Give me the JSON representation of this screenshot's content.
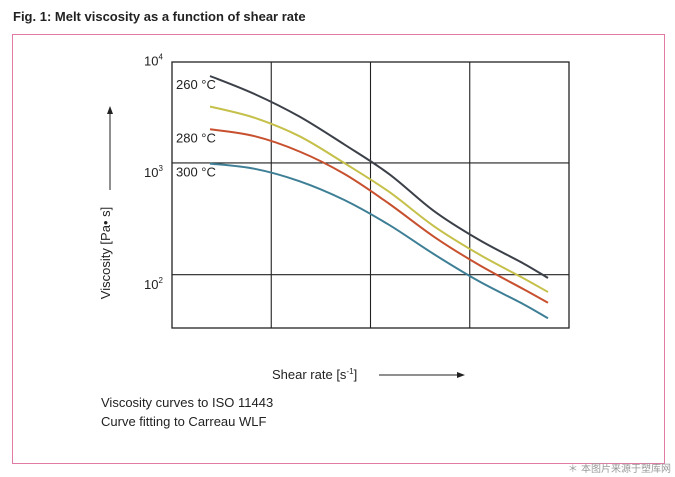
{
  "figure": {
    "title": "Fig. 1: Melt viscosity as a function of shear rate",
    "caption_line1": "Viscosity curves to ISO 11443",
    "caption_line2": "Curve fitting to Carreau WLF",
    "credit": "＊ 本图片来源于塑库网",
    "frame_color": "#e17aa4"
  },
  "chart_data": {
    "type": "line",
    "title": "Fig. 1: Melt viscosity as a function of shear rate",
    "xlabel": "Shear rate [s-1]",
    "ylabel": "Viscosity [Pa• s]",
    "y_scale": "log",
    "x_ticks_labeled": false,
    "y_ticks": [
      {
        "base": "10",
        "exp": "4",
        "value": 10000
      },
      {
        "base": "10",
        "exp": "3",
        "value": 1000
      },
      {
        "base": "10",
        "exp": "2",
        "value": 100
      }
    ],
    "grid": true,
    "series": [
      {
        "name": "260 °C",
        "color": "#3c4149",
        "points": [
          [
            0,
            9000
          ],
          [
            0.5,
            6200
          ],
          [
            1.0,
            3900
          ],
          [
            1.5,
            2200
          ],
          [
            2.0,
            1200
          ],
          [
            2.5,
            560
          ],
          [
            3.0,
            310
          ],
          [
            3.5,
            190
          ],
          [
            3.78,
            140
          ]
        ]
      },
      {
        "name": "",
        "color": "#c5c04a",
        "points": [
          [
            0,
            4800
          ],
          [
            0.5,
            3800
          ],
          [
            1.0,
            2600
          ],
          [
            1.5,
            1500
          ],
          [
            2.0,
            830
          ],
          [
            2.5,
            410
          ],
          [
            3.0,
            230
          ],
          [
            3.5,
            140
          ],
          [
            3.78,
            105
          ]
        ]
      },
      {
        "name": "280 °C",
        "color": "#c7502f",
        "points": [
          [
            0,
            3000
          ],
          [
            0.5,
            2600
          ],
          [
            1.0,
            1900
          ],
          [
            1.5,
            1200
          ],
          [
            2.0,
            650
          ],
          [
            2.5,
            330
          ],
          [
            3.0,
            185
          ],
          [
            3.5,
            112
          ],
          [
            3.78,
            84
          ]
        ]
      },
      {
        "name": "300 °C",
        "color": "#3e7f96",
        "points": [
          [
            0,
            1480
          ],
          [
            0.5,
            1330
          ],
          [
            1.0,
            1030
          ],
          [
            1.5,
            700
          ],
          [
            2.0,
            420
          ],
          [
            2.5,
            230
          ],
          [
            3.0,
            132
          ],
          [
            3.5,
            82
          ],
          [
            3.78,
            61
          ]
        ]
      }
    ]
  }
}
